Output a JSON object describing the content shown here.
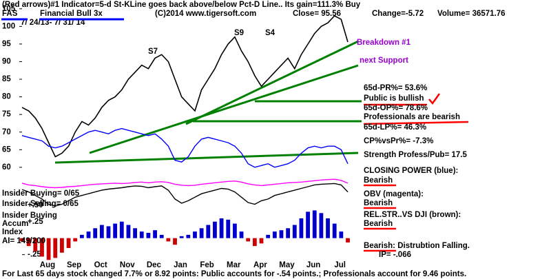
{
  "chart_data": [
    {
      "type": "line",
      "title": "(Red arrows)#1 Indicator=5-d St-KLine goes back above/below Pct-D Line.. Its gain=111.3% Buy",
      "ticker": "FAS",
      "fund_name": "Financial Bull 3x",
      "date_range": "7/ 24/13- 7/ 31/ 14",
      "copyright": "(C)2014 www.tigersoft.com",
      "close": "Close= 95.56",
      "change": "Change=-5.72",
      "volume": "Volume= 36571.76",
      "categories": [
        null,
        null,
        null,
        "Aug",
        null,
        null,
        null,
        "Sep",
        null,
        null,
        null,
        "Oct",
        null,
        null,
        null,
        "Nov",
        null,
        null,
        null,
        "Dec",
        null,
        null,
        null,
        "Jan",
        null,
        null,
        null,
        "Feb",
        null,
        null,
        null,
        "Mar",
        null,
        null,
        null,
        "Apr",
        null,
        null,
        null,
        "May",
        null,
        null,
        null,
        "Jun",
        null,
        null,
        null,
        "Jul",
        null,
        null
      ],
      "ylim": [
        32,
        107.5
      ],
      "yticks": [
        105,
        100,
        95,
        90,
        85,
        80,
        75,
        70,
        65,
        60
      ],
      "series": [
        {
          "name": "Price",
          "color": "#000000",
          "values": [
            77,
            76,
            74,
            71,
            67,
            63,
            64,
            66,
            70,
            73,
            72,
            74,
            77,
            79,
            80,
            82,
            85,
            87,
            89,
            88,
            91,
            92,
            90,
            85,
            80,
            78,
            76,
            82,
            85,
            88,
            92,
            95,
            97,
            93,
            90,
            86,
            83,
            85,
            87,
            89,
            91,
            88,
            92,
            95,
            98,
            100,
            101,
            103,
            102,
            95.56
          ]
        },
        {
          "name": "Closing Power",
          "color": "#0000ff",
          "values": [
            69,
            68.5,
            68,
            67.5,
            66,
            65.5,
            66,
            67,
            68,
            69,
            70,
            70.5,
            70,
            69.5,
            70.5,
            71,
            70.5,
            70,
            69.5,
            69,
            69.5,
            68,
            66,
            62,
            61.5,
            63,
            66,
            68,
            68.5,
            68,
            67.5,
            67,
            66,
            64,
            61,
            60,
            60.5,
            61,
            60,
            60.5,
            61,
            62,
            64,
            65.5,
            66,
            65.5,
            66,
            66,
            65,
            61
          ]
        },
        {
          "name": "OBV",
          "color": "#ff00ff",
          "values": [
            55.5,
            55,
            54.8,
            54.5,
            54.3,
            54.2,
            54.3,
            54.5,
            54.6,
            54.8,
            55,
            55.2,
            55.3,
            55.4,
            55.5,
            55.4,
            55.5,
            55.7,
            55.8,
            55.6,
            55.8,
            55.9,
            55.7,
            55.2,
            54.9,
            54.8,
            54.9,
            55.2,
            55.4,
            55.6,
            55.8,
            56,
            56.1,
            55.8,
            55.3,
            55,
            54.8,
            55,
            55.2,
            55.4,
            55.6,
            55.7,
            55.8,
            56,
            56.2,
            56.4,
            56.5,
            56.6,
            56.3,
            55.5
          ]
        },
        {
          "name": "Rel Str",
          "color": "#000000",
          "values": [
            53.7,
            53,
            52,
            51,
            49.5,
            49,
            49.5,
            50.5,
            51.5,
            52,
            52.5,
            53,
            53.5,
            53.8,
            54,
            54.2,
            54.5,
            54.7,
            54.6,
            54.2,
            54.5,
            54.7,
            53.5,
            51,
            49.8,
            50.5,
            51.5,
            52.5,
            53,
            53.5,
            54,
            53.8,
            53,
            51.5,
            50,
            49.5,
            50.5,
            51,
            52,
            52.5,
            53,
            53.5,
            54,
            54.5,
            55,
            55.2,
            55.3,
            55.4,
            55,
            53
          ]
        }
      ],
      "annotations": [
        "Breakdown #1",
        "next Support",
        "S7",
        "S9",
        "S4",
        "65d-PR%= 53.6%",
        "Public is bullish",
        "65d-OP%= 78.6%",
        "Professionals are bearish",
        "65d-LP%= 46.3%",
        "CP%vsPr%= -7.3%",
        "Strength Profess/Pub= 17.5",
        "CLOSING POWER (blue):",
        "Bearish",
        "OBV (magenta):",
        "Bearish",
        "REL.STR..VS DJI (brown):",
        "Bearish",
        "Bearish: Distrubtion Falling.",
        "IP= -.066",
        "Insider Buying= 0/65",
        "Insider Selling= 0/65",
        "Insider Buying",
        "Accum",
        "Index",
        "AI= 149/200"
      ],
      "footer": "For Last 65 days stock changed  7.7% or  8.92 points:  Public accounts for -.54 points.;  Professionals account for  9.46 points."
    },
    {
      "type": "bar",
      "name": "Accum Index",
      "ylim": [
        -0.4,
        0.55
      ],
      "yticks": [
        {
          "value": 0.5,
          "label": "+.50"
        },
        {
          "value": 0.25,
          "label": "+.25"
        },
        {
          "value": -0.25,
          "label": "-.25"
        }
      ],
      "color": "#0000cc",
      "negative_color": "#cc0000",
      "values": [
        -0.05,
        -0.12,
        -0.2,
        -0.28,
        -0.33,
        -0.3,
        -0.22,
        -0.15,
        -0.05,
        0.05,
        0.1,
        0.15,
        0.2,
        0.18,
        0.22,
        0.25,
        0.2,
        0.15,
        0.1,
        0.08,
        0.12,
        0.05,
        -0.05,
        -0.1,
        0.03,
        0.05,
        0.1,
        0.15,
        0.2,
        0.25,
        0.3,
        0.28,
        0.22,
        0.1,
        -0.05,
        -0.12,
        -0.08,
        0.05,
        0.1,
        0.12,
        0.15,
        0.2,
        0.3,
        0.4,
        0.42,
        0.38,
        0.3,
        0.22,
        0.1,
        -0.066
      ]
    }
  ]
}
